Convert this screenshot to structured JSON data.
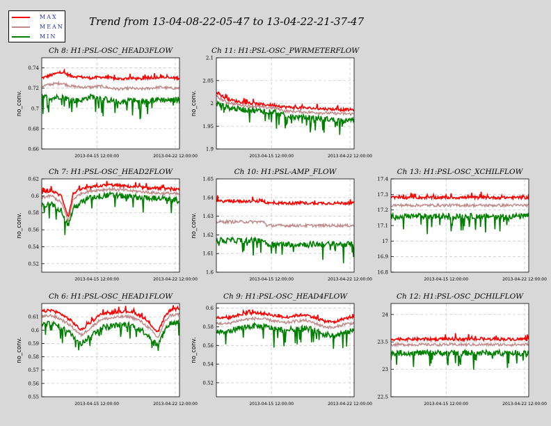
{
  "figure": {
    "title": "Trend from 13-04-08-22-05-47 to 13-04-22-21-37-47"
  },
  "legend": {
    "items": [
      {
        "label": "MAX",
        "color": "#ff0000"
      },
      {
        "label": "MEAN",
        "color": "#c08888"
      },
      {
        "label": "MIN",
        "color": "#008000"
      }
    ]
  },
  "chart_data": [
    {
      "type": "line",
      "title": "Ch 8: H1:PSL-OSC_HEAD3FLOW",
      "ylabel": "no_conv.",
      "xticks": [
        "2013-04-15 12:00:00",
        "2013-04-22 12:00:00"
      ],
      "ylim": [
        0.66,
        0.75
      ],
      "yticks": [
        0.66,
        0.68,
        0.7,
        0.72,
        0.74
      ],
      "series": [
        {
          "name": "MAX",
          "x_days": [
            0,
            1,
            2,
            3,
            4,
            5,
            6,
            7,
            8,
            9,
            10,
            11,
            12,
            13,
            14
          ],
          "values": [
            0.73,
            0.733,
            0.736,
            0.732,
            0.731,
            0.73,
            0.731,
            0.73,
            0.729,
            0.73,
            0.729,
            0.73,
            0.731,
            0.73,
            0.73
          ]
        },
        {
          "name": "MEAN",
          "x_days": [
            0,
            1,
            2,
            3,
            4,
            5,
            6,
            7,
            8,
            9,
            10,
            11,
            12,
            13,
            14
          ],
          "values": [
            0.722,
            0.724,
            0.725,
            0.722,
            0.721,
            0.721,
            0.722,
            0.72,
            0.719,
            0.72,
            0.719,
            0.72,
            0.721,
            0.72,
            0.72
          ]
        },
        {
          "name": "MIN",
          "x_days": [
            0,
            1,
            2,
            3,
            4,
            5,
            6,
            7,
            8,
            9,
            10,
            11,
            12,
            13,
            14
          ],
          "values": [
            0.712,
            0.71,
            0.712,
            0.708,
            0.708,
            0.712,
            0.71,
            0.708,
            0.706,
            0.709,
            0.706,
            0.708,
            0.709,
            0.708,
            0.709
          ]
        }
      ]
    },
    {
      "type": "line",
      "title": "Ch 11: H1:PSL-OSC_PWRMETERFLOW",
      "ylabel": "no_conv.",
      "xticks": [
        "2013-04-15 12:00:00",
        "2013-04-22 12:00:00"
      ],
      "ylim": [
        1.9,
        2.1
      ],
      "yticks": [
        1.9,
        1.95,
        2,
        2.05,
        2.1
      ],
      "series": [
        {
          "name": "MAX",
          "x_days": [
            0,
            1,
            2,
            3,
            4,
            5,
            6,
            7,
            8,
            9,
            10,
            11,
            12,
            13,
            14
          ],
          "values": [
            2.025,
            2.01,
            2.005,
            2.001,
            1.999,
            1.997,
            1.996,
            1.992,
            1.991,
            1.99,
            1.989,
            1.988,
            1.987,
            1.986,
            1.986
          ]
        },
        {
          "name": "MEAN",
          "x_days": [
            0,
            1,
            2,
            3,
            4,
            5,
            6,
            7,
            8,
            9,
            10,
            11,
            12,
            13,
            14
          ],
          "values": [
            2.015,
            2.003,
            1.998,
            1.995,
            1.993,
            1.991,
            1.99,
            1.983,
            1.982,
            1.981,
            1.98,
            1.979,
            1.978,
            1.977,
            1.977
          ]
        },
        {
          "name": "MIN",
          "x_days": [
            0,
            1,
            2,
            3,
            4,
            5,
            6,
            7,
            8,
            9,
            10,
            11,
            12,
            13,
            14
          ],
          "values": [
            2.0,
            1.992,
            1.988,
            1.986,
            1.984,
            1.983,
            1.982,
            1.972,
            1.97,
            1.969,
            1.968,
            1.966,
            1.964,
            1.962,
            1.962
          ]
        }
      ]
    },
    {
      "type": "line",
      "title": "Ch 7: H1:PSL-OSC_HEAD2FLOW",
      "ylabel": "no_conv.",
      "xticks": [
        "2013-04-15 12:00:00",
        "2013-04-22 12:00:00"
      ],
      "ylim": [
        0.51,
        0.62
      ],
      "yticks": [
        0.52,
        0.54,
        0.56,
        0.58,
        0.6,
        0.62
      ],
      "series": [
        {
          "name": "MAX",
          "x_days": [
            0,
            1,
            2,
            2.7,
            3.2,
            4,
            5,
            6,
            7,
            8,
            9,
            10,
            11,
            12,
            13,
            14
          ],
          "values": [
            0.604,
            0.606,
            0.6,
            0.575,
            0.603,
            0.608,
            0.61,
            0.612,
            0.613,
            0.612,
            0.611,
            0.61,
            0.609,
            0.609,
            0.608,
            0.607
          ]
        },
        {
          "name": "MEAN",
          "x_days": [
            0,
            1,
            2,
            2.7,
            3.2,
            4,
            5,
            6,
            7,
            8,
            9,
            10,
            11,
            12,
            13,
            14
          ],
          "values": [
            0.598,
            0.6,
            0.592,
            0.57,
            0.596,
            0.603,
            0.606,
            0.607,
            0.608,
            0.607,
            0.606,
            0.605,
            0.604,
            0.603,
            0.603,
            0.602
          ]
        },
        {
          "name": "MIN",
          "x_days": [
            0,
            1,
            2,
            2.7,
            3.2,
            4,
            5,
            6,
            7,
            8,
            9,
            10,
            11,
            12,
            13,
            14
          ],
          "values": [
            0.588,
            0.59,
            0.583,
            0.565,
            0.585,
            0.592,
            0.598,
            0.6,
            0.601,
            0.6,
            0.599,
            0.598,
            0.598,
            0.597,
            0.596,
            0.595
          ]
        }
      ]
    },
    {
      "type": "line",
      "title": "Ch 10: H1:PSL-AMP_FLOW",
      "ylabel": "no_conv.",
      "xticks": [
        "2013-04-15 12:00:00",
        "2013-04-22 12:00:00"
      ],
      "ylim": [
        1.6,
        1.65
      ],
      "yticks": [
        1.6,
        1.61,
        1.62,
        1.63,
        1.64,
        1.65
      ],
      "series": [
        {
          "name": "MAX",
          "x_days": [
            0,
            4.9,
            5.1,
            14
          ],
          "values": [
            1.638,
            1.638,
            1.637,
            1.637
          ]
        },
        {
          "name": "MEAN",
          "x_days": [
            0,
            4.9,
            5.1,
            14
          ],
          "values": [
            1.627,
            1.627,
            1.625,
            1.625
          ]
        },
        {
          "name": "MIN",
          "x_days": [
            0,
            4.9,
            5.1,
            14
          ],
          "values": [
            1.617,
            1.617,
            1.615,
            1.615
          ]
        }
      ]
    },
    {
      "type": "line",
      "title": "Ch 13: H1:PSL-OSC_XCHILFLOW",
      "ylabel": "",
      "xticks": [
        "2013-04-15 12:00:00",
        "2013-04-22 12:00:00"
      ],
      "ylim": [
        16.8,
        17.4
      ],
      "yticks": [
        16.8,
        16.9,
        17,
        17.1,
        17.2,
        17.3,
        17.4
      ],
      "series": [
        {
          "name": "MAX",
          "x_days": [
            0,
            14
          ],
          "values": [
            17.28,
            17.28
          ]
        },
        {
          "name": "MEAN",
          "x_days": [
            0,
            14
          ],
          "values": [
            17.23,
            17.23
          ]
        },
        {
          "name": "MIN",
          "x_days": [
            0,
            14
          ],
          "values": [
            17.16,
            17.16
          ]
        }
      ]
    },
    {
      "type": "line",
      "title": "Ch 6: H1:PSL-OSC_HEAD1FLOW",
      "ylabel": "no_conv.",
      "xticks": [
        "2013-04-15 12:00:00",
        "2013-04-22 12:00:00"
      ],
      "ylim": [
        0.55,
        0.62
      ],
      "yticks": [
        0.55,
        0.56,
        0.57,
        0.58,
        0.59,
        0.6,
        0.61
      ],
      "series": [
        {
          "name": "MAX",
          "x_days": [
            0,
            1,
            2,
            3,
            4,
            5,
            6,
            7,
            8,
            9,
            10,
            11,
            11.8,
            12.5,
            13,
            14
          ],
          "values": [
            0.614,
            0.615,
            0.612,
            0.607,
            0.6,
            0.606,
            0.612,
            0.613,
            0.614,
            0.614,
            0.611,
            0.605,
            0.598,
            0.61,
            0.615,
            0.616
          ]
        },
        {
          "name": "MEAN",
          "x_days": [
            0,
            1,
            2,
            3,
            4,
            5,
            6,
            7,
            8,
            9,
            10,
            11,
            11.8,
            12.5,
            13,
            14
          ],
          "values": [
            0.61,
            0.611,
            0.608,
            0.603,
            0.596,
            0.602,
            0.608,
            0.609,
            0.61,
            0.61,
            0.607,
            0.601,
            0.594,
            0.606,
            0.611,
            0.612
          ]
        },
        {
          "name": "MIN",
          "x_days": [
            0,
            1,
            2,
            3,
            4,
            5,
            6,
            7,
            8,
            9,
            10,
            11,
            11.8,
            12.5,
            13,
            14
          ],
          "values": [
            0.604,
            0.605,
            0.602,
            0.597,
            0.59,
            0.596,
            0.602,
            0.603,
            0.604,
            0.604,
            0.601,
            0.595,
            0.588,
            0.6,
            0.605,
            0.606
          ]
        }
      ]
    },
    {
      "type": "line",
      "title": "Ch 9: H1:PSL-OSC_HEAD4FLOW",
      "ylabel": "no_conv.",
      "xticks": [
        "2013-04-15 12:00:00",
        "2013-04-22 12:00:00"
      ],
      "ylim": [
        0.505,
        0.605
      ],
      "yticks": [
        0.52,
        0.54,
        0.56,
        0.58,
        0.6
      ],
      "series": [
        {
          "name": "MAX",
          "x_days": [
            0,
            1,
            2,
            3,
            4,
            5,
            6,
            7,
            8,
            9,
            10,
            11,
            12,
            13,
            14
          ],
          "values": [
            0.59,
            0.589,
            0.592,
            0.594,
            0.595,
            0.594,
            0.592,
            0.59,
            0.592,
            0.593,
            0.59,
            0.586,
            0.585,
            0.589,
            0.59
          ]
        },
        {
          "name": "MEAN",
          "x_days": [
            0,
            1,
            2,
            3,
            4,
            5,
            6,
            7,
            8,
            9,
            10,
            11,
            12,
            13,
            14
          ],
          "values": [
            0.584,
            0.583,
            0.586,
            0.588,
            0.589,
            0.588,
            0.586,
            0.584,
            0.586,
            0.587,
            0.584,
            0.58,
            0.579,
            0.583,
            0.584
          ]
        },
        {
          "name": "MIN",
          "x_days": [
            0,
            1,
            2,
            3,
            4,
            5,
            6,
            7,
            8,
            9,
            10,
            11,
            12,
            13,
            14
          ],
          "values": [
            0.575,
            0.574,
            0.578,
            0.58,
            0.581,
            0.58,
            0.578,
            0.576,
            0.578,
            0.579,
            0.576,
            0.572,
            0.57,
            0.574,
            0.576
          ]
        }
      ]
    },
    {
      "type": "line",
      "title": "Ch 12: H1:PSL-OSC_DCHILFLOW",
      "ylabel": "",
      "xticks": [
        "2013-04-15 12:00:00",
        "2013-04-22 12:00:00"
      ],
      "ylim": [
        22.5,
        24.2
      ],
      "yticks": [
        22.5,
        23,
        23.5,
        24
      ],
      "series": [
        {
          "name": "MAX",
          "x_days": [
            0,
            14
          ],
          "values": [
            23.55,
            23.55
          ]
        },
        {
          "name": "MEAN",
          "x_days": [
            0,
            14
          ],
          "values": [
            23.45,
            23.45
          ]
        },
        {
          "name": "MIN",
          "x_days": [
            0,
            14
          ],
          "values": [
            23.3,
            23.3
          ]
        }
      ]
    }
  ]
}
